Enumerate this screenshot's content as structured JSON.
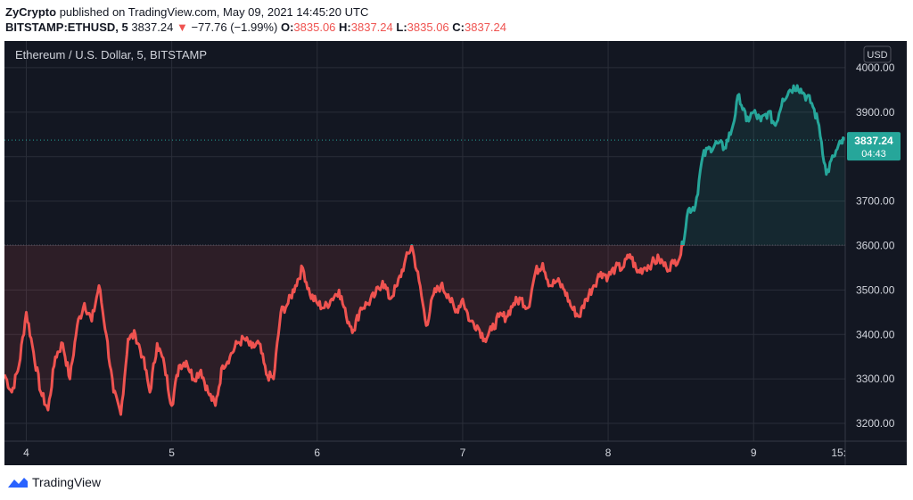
{
  "header": {
    "publisher": "ZyCrypto",
    "published_text": "published on TradingView.com, May 09, 2021 14:45:20 UTC",
    "symbol": "BITSTAMP:ETHUSD, 5",
    "last": "3837.24",
    "change_arrow": "▼",
    "change": "−77.76 (−1.99%)",
    "o_label": "O:",
    "o_value": "3835.06",
    "h_label": "H:",
    "h_value": "3837.24",
    "l_label": "L:",
    "l_value": "3835.06",
    "c_label": "C:",
    "c_value": "3837.24"
  },
  "footer": {
    "brand": "TradingView",
    "logo_icon": "tradingview-logo-icon"
  },
  "colors": {
    "up": "#26a69a",
    "down": "#ef5350",
    "background": "#131722",
    "grid": "#2a2e39"
  },
  "chart_data": {
    "type": "line",
    "title": "Ethereum / U.S. Dollar, 5, BITSTAMP",
    "currency_label": "USD",
    "ylim": [
      3160,
      4060
    ],
    "y_ticks": [
      3200,
      3300,
      3400,
      3500,
      3600,
      3700,
      3800,
      3900,
      4000
    ],
    "y_tick_labels": [
      "3200.00",
      "3300.00",
      "3400.00",
      "3500.00",
      "3600.00",
      "3700.00",
      "3800.00",
      "3900.00",
      "4000.00"
    ],
    "x_range": [
      3.85,
      9.63
    ],
    "x_ticks": [
      4,
      5,
      6,
      7,
      8,
      9
    ],
    "x_tick_labels": [
      "4",
      "5",
      "6",
      "7",
      "8",
      "9"
    ],
    "x_last_label": "15:",
    "baseline": 3601,
    "last_value": 3837.24,
    "last_value_label": "3837.24",
    "countdown": "04:43",
    "grid": true,
    "series": [
      {
        "x": [
          3.85,
          3.9,
          3.95,
          4.0,
          4.05,
          4.1,
          4.15,
          4.2,
          4.25,
          4.3,
          4.35,
          4.4,
          4.45,
          4.5,
          4.55,
          4.6,
          4.65,
          4.7,
          4.75,
          4.8,
          4.85,
          4.9,
          4.95,
          5.0,
          5.05,
          5.1,
          5.15,
          5.2,
          5.25,
          5.3,
          5.35,
          5.4,
          5.45,
          5.5,
          5.55,
          5.6,
          5.65,
          5.7,
          5.75,
          5.8,
          5.85,
          5.9,
          5.95,
          6.0,
          6.05,
          6.1,
          6.15,
          6.2,
          6.25,
          6.3,
          6.35,
          6.4,
          6.45,
          6.5,
          6.55,
          6.6,
          6.65,
          6.7,
          6.75,
          6.8,
          6.85,
          6.9,
          6.95,
          7.0,
          7.05,
          7.1,
          7.15,
          7.2,
          7.25,
          7.3,
          7.35,
          7.4,
          7.45,
          7.5,
          7.55,
          7.6,
          7.65,
          7.7,
          7.75,
          7.8,
          7.85,
          7.9,
          7.95,
          8.0,
          8.05,
          8.1,
          8.15,
          8.2,
          8.25,
          8.3,
          8.35,
          8.4,
          8.45,
          8.5,
          8.55,
          8.6,
          8.65,
          8.7,
          8.75,
          8.8,
          8.85,
          8.9,
          8.95,
          9.0,
          9.05,
          9.1,
          9.15,
          9.2,
          9.25,
          9.3,
          9.35,
          9.4,
          9.45,
          9.5,
          9.55,
          9.6,
          9.63
        ],
        "y": [
          3310,
          3270,
          3330,
          3450,
          3360,
          3270,
          3230,
          3350,
          3380,
          3300,
          3420,
          3470,
          3430,
          3510,
          3400,
          3270,
          3220,
          3390,
          3400,
          3350,
          3270,
          3380,
          3330,
          3240,
          3330,
          3340,
          3300,
          3320,
          3270,
          3240,
          3330,
          3350,
          3380,
          3390,
          3370,
          3380,
          3310,
          3300,
          3450,
          3470,
          3510,
          3550,
          3490,
          3470,
          3460,
          3480,
          3500,
          3440,
          3410,
          3460,
          3470,
          3490,
          3520,
          3480,
          3510,
          3560,
          3600,
          3520,
          3420,
          3490,
          3510,
          3490,
          3450,
          3480,
          3430,
          3420,
          3390,
          3410,
          3440,
          3440,
          3470,
          3480,
          3460,
          3540,
          3560,
          3510,
          3520,
          3500,
          3460,
          3440,
          3480,
          3510,
          3540,
          3530,
          3550,
          3550,
          3580,
          3540,
          3550,
          3560,
          3570,
          3550,
          3560,
          3580,
          3680,
          3690,
          3800,
          3820,
          3830,
          3820,
          3860,
          3940,
          3880,
          3900,
          3880,
          3900,
          3870,
          3930,
          3950,
          3960,
          3940,
          3920,
          3870,
          3760,
          3800,
          3830,
          3837
        ]
      }
    ]
  }
}
